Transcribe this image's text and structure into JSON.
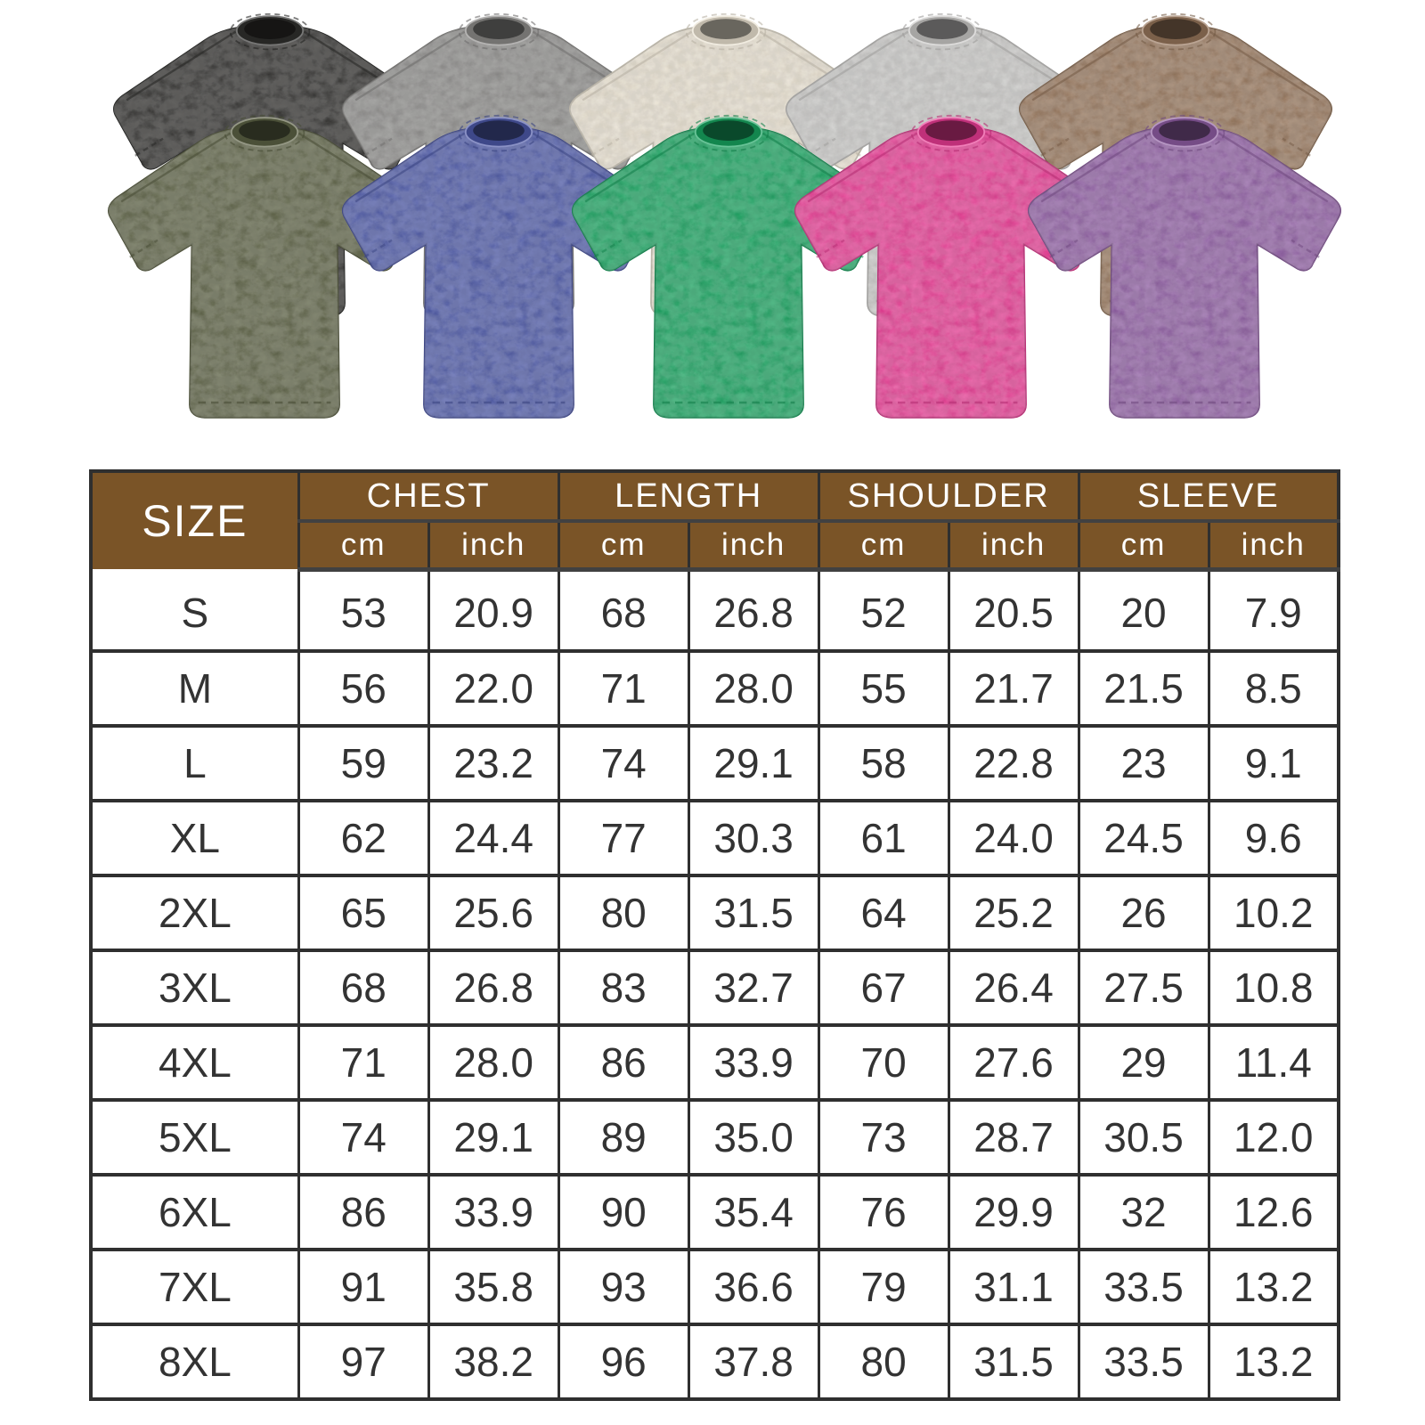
{
  "shirts": {
    "back_row": [
      {
        "name": "washed-black",
        "color": "#302f2d"
      },
      {
        "name": "washed-gray",
        "color": "#8d8c8a"
      },
      {
        "name": "washed-cream",
        "color": "#eae2d1"
      },
      {
        "name": "washed-light-gray",
        "color": "#cac9c7"
      },
      {
        "name": "washed-brown",
        "color": "#96755a"
      }
    ],
    "front_row": [
      {
        "name": "washed-army-green",
        "color": "#5c6144"
      },
      {
        "name": "washed-blue",
        "color": "#4c58a7"
      },
      {
        "name": "washed-green",
        "color": "#17a35f"
      },
      {
        "name": "washed-rose-red",
        "color": "#e93a93"
      },
      {
        "name": "washed-purple",
        "color": "#8f5da3"
      }
    ]
  },
  "size_chart": {
    "corner_label": "SIZE",
    "group_labels": [
      "CHEST",
      "LENGTH",
      "SHOULDER",
      "SLEEVE"
    ],
    "units": [
      "cm",
      "inch"
    ],
    "rows": [
      {
        "size": "S",
        "chest_cm": "53",
        "chest_in": "20.9",
        "length_cm": "68",
        "length_in": "26.8",
        "shoulder_cm": "52",
        "shoulder_in": "20.5",
        "sleeve_cm": "20",
        "sleeve_in": "7.9"
      },
      {
        "size": "M",
        "chest_cm": "56",
        "chest_in": "22.0",
        "length_cm": "71",
        "length_in": "28.0",
        "shoulder_cm": "55",
        "shoulder_in": "21.7",
        "sleeve_cm": "21.5",
        "sleeve_in": "8.5"
      },
      {
        "size": "L",
        "chest_cm": "59",
        "chest_in": "23.2",
        "length_cm": "74",
        "length_in": "29.1",
        "shoulder_cm": "58",
        "shoulder_in": "22.8",
        "sleeve_cm": "23",
        "sleeve_in": "9.1"
      },
      {
        "size": "XL",
        "chest_cm": "62",
        "chest_in": "24.4",
        "length_cm": "77",
        "length_in": "30.3",
        "shoulder_cm": "61",
        "shoulder_in": "24.0",
        "sleeve_cm": "24.5",
        "sleeve_in": "9.6"
      },
      {
        "size": "2XL",
        "chest_cm": "65",
        "chest_in": "25.6",
        "length_cm": "80",
        "length_in": "31.5",
        "shoulder_cm": "64",
        "shoulder_in": "25.2",
        "sleeve_cm": "26",
        "sleeve_in": "10.2"
      },
      {
        "size": "3XL",
        "chest_cm": "68",
        "chest_in": "26.8",
        "length_cm": "83",
        "length_in": "32.7",
        "shoulder_cm": "67",
        "shoulder_in": "26.4",
        "sleeve_cm": "27.5",
        "sleeve_in": "10.8"
      },
      {
        "size": "4XL",
        "chest_cm": "71",
        "chest_in": "28.0",
        "length_cm": "86",
        "length_in": "33.9",
        "shoulder_cm": "70",
        "shoulder_in": "27.6",
        "sleeve_cm": "29",
        "sleeve_in": "11.4"
      },
      {
        "size": "5XL",
        "chest_cm": "74",
        "chest_in": "29.1",
        "length_cm": "89",
        "length_in": "35.0",
        "shoulder_cm": "73",
        "shoulder_in": "28.7",
        "sleeve_cm": "30.5",
        "sleeve_in": "12.0"
      },
      {
        "size": "6XL",
        "chest_cm": "86",
        "chest_in": "33.9",
        "length_cm": "90",
        "length_in": "35.4",
        "shoulder_cm": "76",
        "shoulder_in": "29.9",
        "sleeve_cm": "32",
        "sleeve_in": "12.6"
      },
      {
        "size": "7XL",
        "chest_cm": "91",
        "chest_in": "35.8",
        "length_cm": "93",
        "length_in": "36.6",
        "shoulder_cm": "79",
        "shoulder_in": "31.1",
        "sleeve_cm": "33.5",
        "sleeve_in": "13.2"
      },
      {
        "size": "8XL",
        "chest_cm": "97",
        "chest_in": "38.2",
        "length_cm": "96",
        "length_in": "37.8",
        "shoulder_cm": "80",
        "shoulder_in": "31.5",
        "sleeve_cm": "33.5",
        "sleeve_in": "13.2"
      }
    ]
  },
  "theme": {
    "header-bg": "#7a5427",
    "header-text": "#ffffff",
    "body-text": "#333333",
    "border": "#2f2f2f",
    "heavy-line": "#414141",
    "page-bg": "#ffffff"
  }
}
